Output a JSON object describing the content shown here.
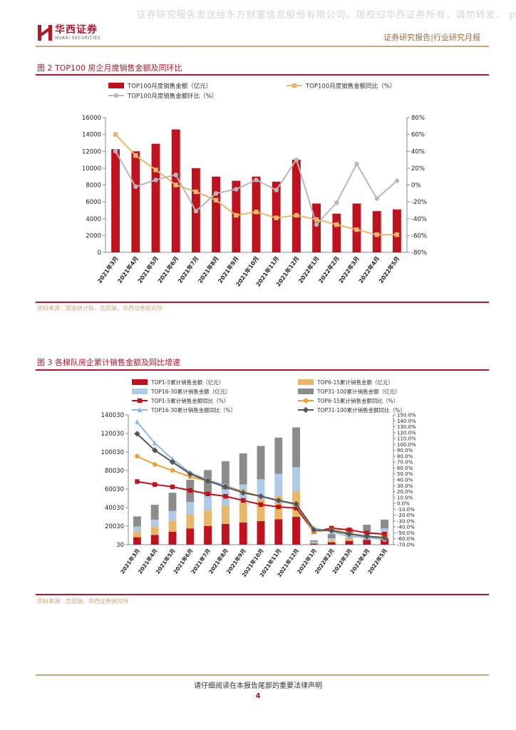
{
  "header": {
    "watermark": "证券研究报告发送给东方财富信息股份有限公司。版权归华西证券所有，请勿转发。 p",
    "logo_cn": "华西证券",
    "logo_en": "HUAXI SECURITIES",
    "report_type": "证券研究报告|行业研究月报"
  },
  "footer": {
    "note": "请仔细阅读在本报告尾部的重要法律声明",
    "page": "4"
  },
  "colors": {
    "red": "#c0111f",
    "tan": "#e8b86a",
    "lightblue": "#aecbe8",
    "gray": "#8c8c8c",
    "darkred": "#c0111f",
    "orange": "#f0a030",
    "blue": "#8fb8e8",
    "darkgray": "#555555"
  },
  "chart_data": [
    {
      "type": "bar",
      "title": "图 2   TOP100 房企月度销售金额及同环比",
      "source": "资料来源：国家统计局，克而瑞，华西证券研究所",
      "categories": [
        "2021年3月",
        "2021年4月",
        "2021年5月",
        "2021年6月",
        "2021年7月",
        "2021年8月",
        "2021年9月",
        "2021年10月",
        "2021年11月",
        "2021年12月",
        "2022年1月",
        "2022年2月",
        "2022年3月",
        "2022年4月",
        "2022年5月"
      ],
      "y_left": {
        "min": 0,
        "max": 16000,
        "ticks": [
          "0",
          "2000",
          "4000",
          "6000",
          "8000",
          "10000",
          "12000",
          "14000",
          "16000"
        ]
      },
      "y_right": {
        "min": -80,
        "max": 80,
        "ticks": [
          "-80%",
          "-60%",
          "-40%",
          "-20%",
          "0%",
          "20%",
          "40%",
          "60%",
          "80%"
        ]
      },
      "legend": [
        "TOP100月度销售金额（亿元）",
        "TOP100月度销售金额同比（%）",
        "TOP100月度销售金额环比（%）"
      ],
      "series": [
        {
          "name": "TOP100月度销售金额（亿元）",
          "kind": "bar",
          "axis": "left",
          "color": "#c0111f",
          "values": [
            12250,
            12000,
            12900,
            14600,
            10000,
            9000,
            8500,
            9000,
            8400,
            11000,
            5800,
            4600,
            5800,
            4900,
            5100
          ]
        },
        {
          "name": "TOP100月度销售金额同比（%）",
          "kind": "line",
          "axis": "right",
          "color": "#e8b86a",
          "marker": "square",
          "values": [
            60,
            35,
            18,
            0,
            -8,
            -18,
            -36,
            -32,
            -39,
            -36,
            -41,
            -47,
            -53,
            -59,
            -59
          ]
        },
        {
          "name": "TOP100月度销售金额环比（%）",
          "kind": "line",
          "axis": "right",
          "color": "#b8b8b8",
          "marker": "circle",
          "values": [
            40,
            -2,
            6,
            12,
            -31,
            -10,
            -5,
            6,
            -6,
            30,
            -47,
            -21,
            25,
            -16,
            5
          ]
        }
      ]
    },
    {
      "type": "bar",
      "title": "图 3   各梯队房企累计销售金额及同比增速",
      "source": "资料来源：克而瑞，华西证券研究所",
      "categories": [
        "2021年3月",
        "2021年4月",
        "2021年5月",
        "2021年6月",
        "2021年7月",
        "2021年8月",
        "2021年9月",
        "2021年10月",
        "2021年11月",
        "2021年12月",
        "2022年1月",
        "2022年2月",
        "2022年3月",
        "2022年4月",
        "2022年5月"
      ],
      "y_left": {
        "min": 30,
        "max": 140030,
        "ticks": [
          "30",
          "20030",
          "40030",
          "60030",
          "80030",
          "100030",
          "120030",
          "140030"
        ]
      },
      "y_right": {
        "min": -70,
        "max": 150,
        "ticks": [
          "-70.0%",
          "-60.0%",
          "-50.0%",
          "-40.0%",
          "-30.0%",
          "-20.0%",
          "-10.0%",
          "0.0%",
          "10.0%",
          "20.0%",
          "30.0%",
          "40.0%",
          "50.0%",
          "60.0%",
          "70.0%",
          "80.0%",
          "90.0%",
          "100.0%",
          "110.0%",
          "120.0%",
          "130.0%",
          "140.0%",
          "150.0%"
        ]
      },
      "legend": [
        "TOP1-5累计销售金额（亿元）",
        "TOP6-15累计销售金额（亿元）",
        "TOP16-30累计销售金额（亿元）",
        "TOP31-100累计销售金额（亿元）",
        "TOP1-5累计销售金额同比（%）",
        "TOP6-15累计销售金额同比（%）",
        "TOP16-30累计销售金额同比（%）",
        "TOP31-100累计销售金额同比（%）"
      ],
      "series": [
        {
          "name": "TOP1-5累计销售金额（亿元）",
          "kind": "stack",
          "color": "#c0111f",
          "values": [
            8000,
            10500,
            14000,
            17500,
            20000,
            22500,
            24000,
            25500,
            27500,
            30000,
            1200,
            2600,
            4100,
            5200,
            6500
          ]
        },
        {
          "name": "TOP6-15累计销售金额（亿元）",
          "kind": "stack",
          "color": "#e8b86a",
          "values": [
            6500,
            9000,
            12000,
            15500,
            17500,
            19500,
            21500,
            23500,
            25500,
            28000,
            1000,
            2300,
            3700,
            4700,
            5800
          ]
        },
        {
          "name": "TOP16-30累计销售金额（亿元）",
          "kind": "stack",
          "color": "#aecbe8",
          "values": [
            5000,
            7500,
            10500,
            13000,
            15500,
            17500,
            19500,
            21500,
            23500,
            25500,
            900,
            2000,
            3100,
            4200,
            5200
          ]
        },
        {
          "name": "TOP31-100累计销售金额（亿元）",
          "kind": "stack",
          "color": "#8c8c8c",
          "values": [
            11000,
            16000,
            19500,
            24000,
            27500,
            30500,
            33500,
            36000,
            39000,
            43000,
            1500,
            4500,
            6700,
            7400,
            9500
          ]
        },
        {
          "name": "TOP1-5累计销售金额同比（%）",
          "kind": "line",
          "color": "#c0111f",
          "marker": "square",
          "values": [
            37,
            32,
            28,
            22,
            16,
            12,
            5,
            -2,
            -6,
            -8,
            -48,
            -42,
            -45,
            -50,
            -52
          ]
        },
        {
          "name": "TOP6-15累计销售金额同比（%）",
          "kind": "line",
          "color": "#f0a030",
          "marker": "circle",
          "values": [
            80,
            66,
            56,
            45,
            38,
            30,
            20,
            12,
            5,
            -2,
            -48,
            -45,
            -51,
            -56,
            -58
          ]
        },
        {
          "name": "TOP16-30累计销售金额同比（%）",
          "kind": "line",
          "color": "#8fb8e8",
          "marker": "triangle",
          "values": [
            138,
            102,
            75,
            52,
            40,
            30,
            18,
            12,
            4,
            -2,
            -42,
            -48,
            -56,
            -58,
            -61
          ]
        },
        {
          "name": "TOP31-100累计销售金额同比（%）",
          "kind": "line",
          "color": "#555555",
          "marker": "diamond",
          "values": [
            118,
            90,
            70,
            50,
            38,
            28,
            18,
            12,
            5,
            -1,
            -45,
            -46,
            -52,
            -56,
            -58
          ]
        }
      ]
    }
  ]
}
